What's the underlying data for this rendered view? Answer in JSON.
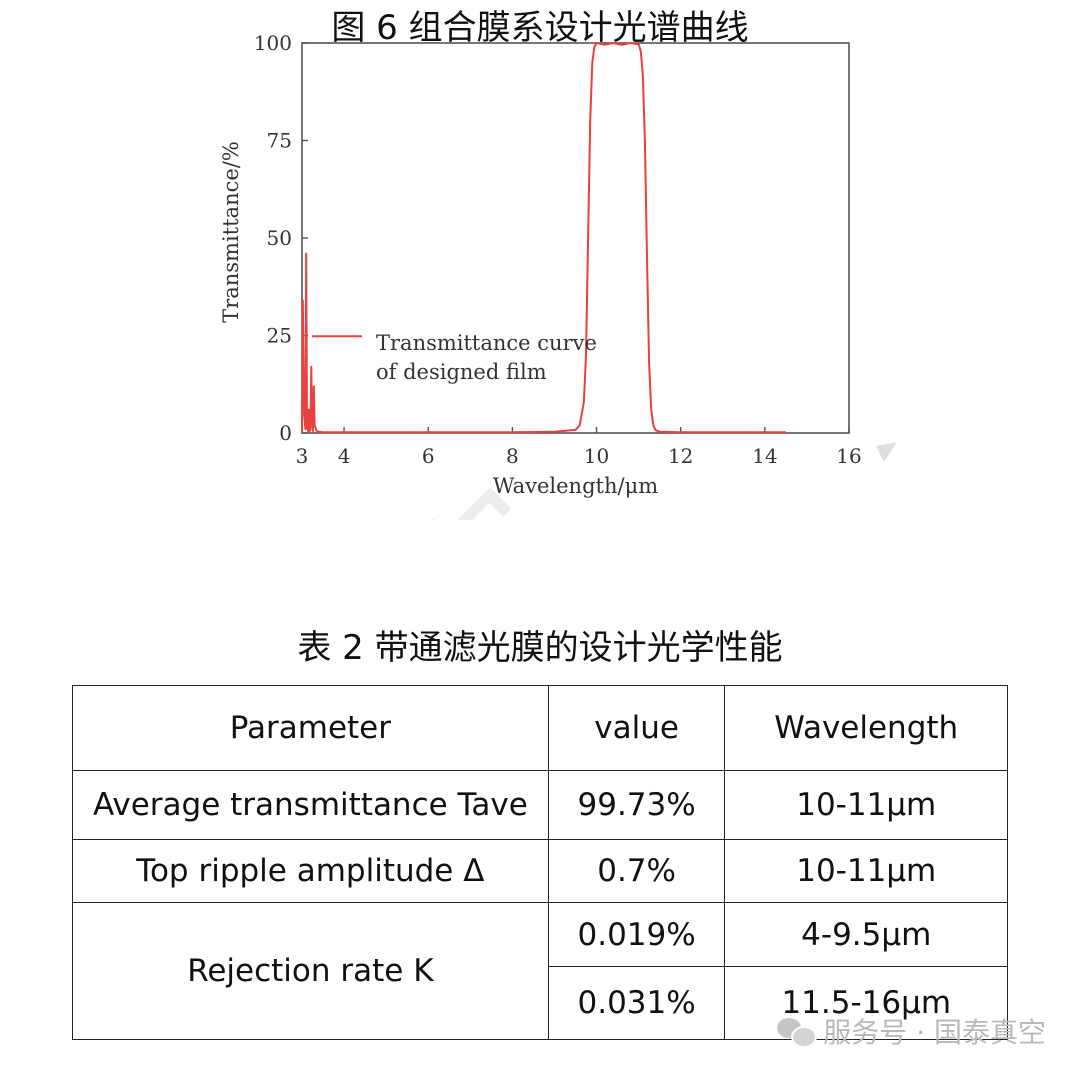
{
  "chart_data": {
    "type": "line",
    "xlabel": "Wavelength/μm",
    "ylabel": "Transmittance/%",
    "xlim": [
      3,
      16
    ],
    "ylim": [
      0,
      100
    ],
    "xticks": [
      3,
      4,
      6,
      8,
      10,
      12,
      14,
      16
    ],
    "yticks": [
      0,
      25,
      50,
      75,
      100
    ],
    "legend": {
      "position": "left-middle",
      "lines": [
        "Transmittance curve",
        "of designed film"
      ]
    },
    "series": [
      {
        "name": "Transmittance curve of designed film",
        "color": "#e8413f",
        "x": [
          3.0,
          3.02,
          3.05,
          3.08,
          3.1,
          3.12,
          3.14,
          3.16,
          3.18,
          3.2,
          3.22,
          3.24,
          3.26,
          3.28,
          3.3,
          3.35,
          3.4,
          3.5,
          4.0,
          5.0,
          6.0,
          7.0,
          8.0,
          9.0,
          9.5,
          9.6,
          9.7,
          9.75,
          9.8,
          9.85,
          9.9,
          9.95,
          10.0,
          10.2,
          10.4,
          10.6,
          10.8,
          11.0,
          11.05,
          11.1,
          11.15,
          11.2,
          11.25,
          11.3,
          11.35,
          11.4,
          11.5,
          12.0,
          13.0,
          14.0,
          14.5
        ],
        "y": [
          0,
          34,
          5,
          1,
          46,
          2,
          0.5,
          6,
          0.5,
          1,
          17,
          3,
          0.5,
          12,
          2,
          0.5,
          0.3,
          0.2,
          0.2,
          0.2,
          0.2,
          0.2,
          0.2,
          0.3,
          0.8,
          2,
          8,
          20,
          50,
          80,
          95,
          99,
          100,
          99.6,
          100,
          99.5,
          100,
          99.7,
          98,
          92,
          75,
          45,
          18,
          6,
          2,
          0.8,
          0.3,
          0.2,
          0.2,
          0.2,
          0.2
        ]
      }
    ]
  },
  "figure_caption": "图 6  组合膜系设计光谱曲线",
  "table_title": "表 2  带通滤光膜的设计光学性能",
  "table": {
    "headers": [
      "Parameter",
      "value",
      "Wavelength"
    ],
    "rows": [
      [
        "Average transmittance Tave",
        "99.73%",
        "10-11μm"
      ],
      [
        "Top ripple amplitude  Δ",
        "0.7%",
        "10-11μm"
      ],
      [
        "Rejection rate K",
        "0.019%",
        "4-9.5μm"
      ],
      [
        "",
        "0.031%",
        "11.5-16μm"
      ]
    ]
  },
  "watermark": "服务号 · 国泰真空",
  "background_watermark": "国泰真空"
}
